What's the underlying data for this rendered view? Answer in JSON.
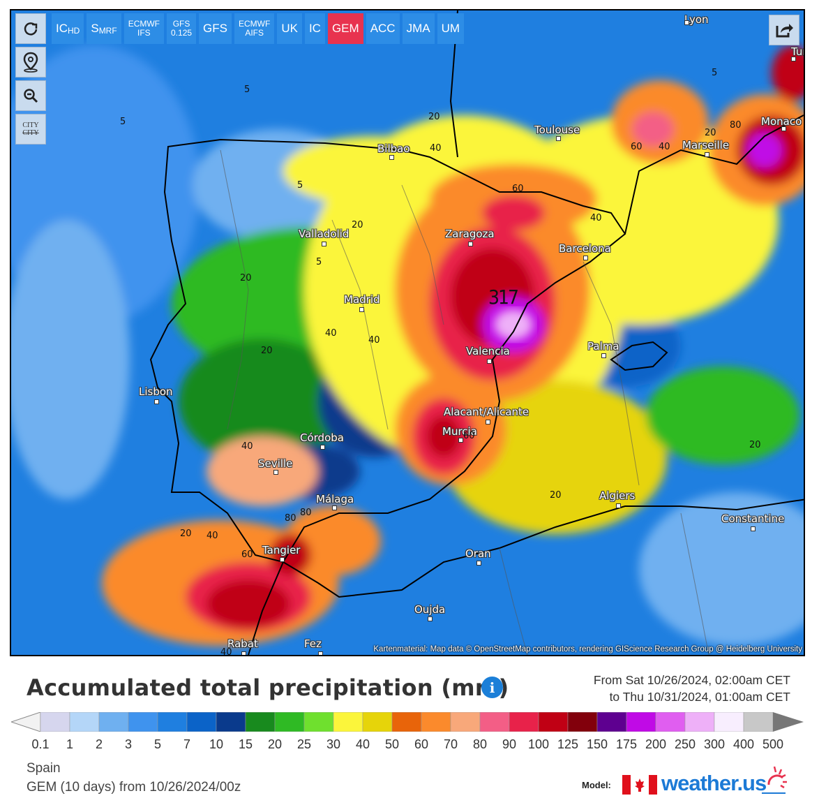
{
  "toolbar": {
    "reload_icon": "reload-icon",
    "location_icon": "map-pin-icon",
    "zoom_out_icon": "zoom-out-icon",
    "city_top": "CITY",
    "city_bottom": "CITY",
    "share_icon": "share-icon"
  },
  "models": [
    {
      "main": "IC",
      "sub": "HD",
      "active": false
    },
    {
      "main": "S",
      "sub": "MRF",
      "active": false
    },
    {
      "main": "ECMWF",
      "sub": "IFS",
      "active": false,
      "small": true
    },
    {
      "main": "GFS",
      "sub": "0.125",
      "active": false,
      "small": true
    },
    {
      "main": "GFS",
      "sub": "",
      "active": false
    },
    {
      "main": "ECMWF",
      "sub": "AIFS",
      "active": false,
      "small": true
    },
    {
      "main": "UK",
      "sub": "",
      "active": false
    },
    {
      "main": "IC",
      "sub": "",
      "active": false
    },
    {
      "main": "GEM",
      "sub": "",
      "active": true,
      "color": "#e8334f"
    },
    {
      "main": "ACC",
      "sub": "",
      "active": false
    },
    {
      "main": "JMA",
      "sub": "",
      "active": false
    },
    {
      "main": "UM",
      "sub": "",
      "active": false
    }
  ],
  "cities": [
    {
      "name": "Lyon"
    },
    {
      "name": "Turin"
    },
    {
      "name": "Toulouse"
    },
    {
      "name": "Monaco"
    },
    {
      "name": "Marseille"
    },
    {
      "name": "Bilbao"
    },
    {
      "name": "Valladolid"
    },
    {
      "name": "Zaragoza"
    },
    {
      "name": "Barcelona"
    },
    {
      "name": "Madrid"
    },
    {
      "name": "Valencia"
    },
    {
      "name": "Palma"
    },
    {
      "name": "Lisbon"
    },
    {
      "name": "Alacant/Alicante"
    },
    {
      "name": "Murcia"
    },
    {
      "name": "Córdoba"
    },
    {
      "name": "Seville"
    },
    {
      "name": "Málaga"
    },
    {
      "name": "Algiers"
    },
    {
      "name": "Constantine"
    },
    {
      "name": "Tangier"
    },
    {
      "name": "Oran"
    },
    {
      "name": "Oujda"
    },
    {
      "name": "Rabat"
    },
    {
      "name": "Fez"
    }
  ],
  "contour_labels": [
    "5",
    "5",
    "5",
    "5",
    "5",
    "20",
    "20",
    "20",
    "20",
    "20",
    "20",
    "20",
    "20",
    "40",
    "40",
    "40",
    "40",
    "40",
    "40",
    "40",
    "40",
    "60",
    "60",
    "60",
    "60",
    "80",
    "80",
    "80"
  ],
  "peak_value": "317",
  "attribution": "Kartenmaterial: Map data © OpenStreetMap contributors, rendering GIScience Research Group @ Heidelberg University",
  "title": "Accumulated total precipitation (mm)",
  "info_icon": "info-icon",
  "period": {
    "from": "From Sat 10/26/2024, 02:00am CET",
    "to": "to Thu 10/31/2024, 01:00am CET"
  },
  "legend": {
    "values": [
      "0.1",
      "1",
      "2",
      "3",
      "5",
      "7",
      "10",
      "15",
      "20",
      "25",
      "30",
      "40",
      "50",
      "60",
      "70",
      "80",
      "90",
      "100",
      "125",
      "150",
      "175",
      "200",
      "250",
      "300",
      "400",
      "500"
    ],
    "colors": [
      "#d6d6ee",
      "#b4d6f8",
      "#6fb0f0",
      "#3f93ee",
      "#1f7fe0",
      "#0b63c8",
      "#0a3a8c",
      "#188a1e",
      "#2fba24",
      "#6fe02e",
      "#fbf53b",
      "#e6d40a",
      "#e8640a",
      "#fb8a2c",
      "#f8a87a",
      "#f35e86",
      "#e8224a",
      "#c00014",
      "#82000c",
      "#5e0090",
      "#c00ae6",
      "#e05ef0",
      "#eeb0f8",
      "#f8eefe",
      "#c8c8c8"
    ]
  },
  "footer": {
    "region": "Spain",
    "run": "GEM (10 days) from 10/26/2024/00z",
    "model_label": "Model:",
    "brand": "weather.us"
  }
}
